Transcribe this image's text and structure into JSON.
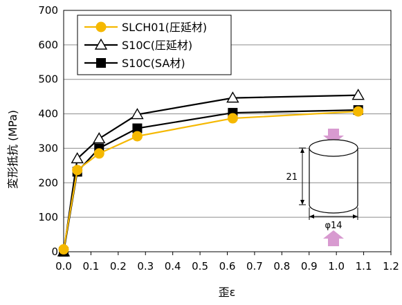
{
  "chart_data": {
    "type": "line",
    "title": "",
    "xlabel": "歪ε",
    "ylabel": "変形抵抗 (MPa)",
    "xlim": [
      0.0,
      1.2
    ],
    "ylim": [
      0,
      700
    ],
    "xticks": [
      "0.0",
      "0.1",
      "0.2",
      "0.3",
      "0.4",
      "0.5",
      "0.6",
      "0.7",
      "0.8",
      "0.9",
      "1.0",
      "1.1",
      "1.2"
    ],
    "yticks": [
      "0",
      "100",
      "200",
      "300",
      "400",
      "500",
      "600",
      "700"
    ],
    "grid": "horizontal",
    "legend_position": "top-left",
    "series": [
      {
        "name": "SLCH01(圧延材)",
        "color": "#F5B800",
        "marker": "circle",
        "x": [
          0.0,
          0.05,
          0.13,
          0.27,
          0.62,
          1.08
        ],
        "y": [
          7,
          237,
          285,
          335,
          387,
          407
        ]
      },
      {
        "name": "S10C(圧延材)",
        "color": "#000000",
        "marker": "triangle-open",
        "x": [
          0.0,
          0.05,
          0.13,
          0.27,
          0.62,
          1.08
        ],
        "y": [
          0,
          270,
          328,
          398,
          446,
          454
        ]
      },
      {
        "name": "S10C(SA材)",
        "color": "#000000",
        "marker": "square",
        "x": [
          0.0,
          0.05,
          0.13,
          0.27,
          0.62,
          1.08
        ],
        "y": [
          0,
          232,
          300,
          358,
          403,
          411
        ]
      }
    ],
    "inset": {
      "height_label": "21",
      "diameter_label": "φ14",
      "arrow_color": "#D89AD0"
    }
  }
}
